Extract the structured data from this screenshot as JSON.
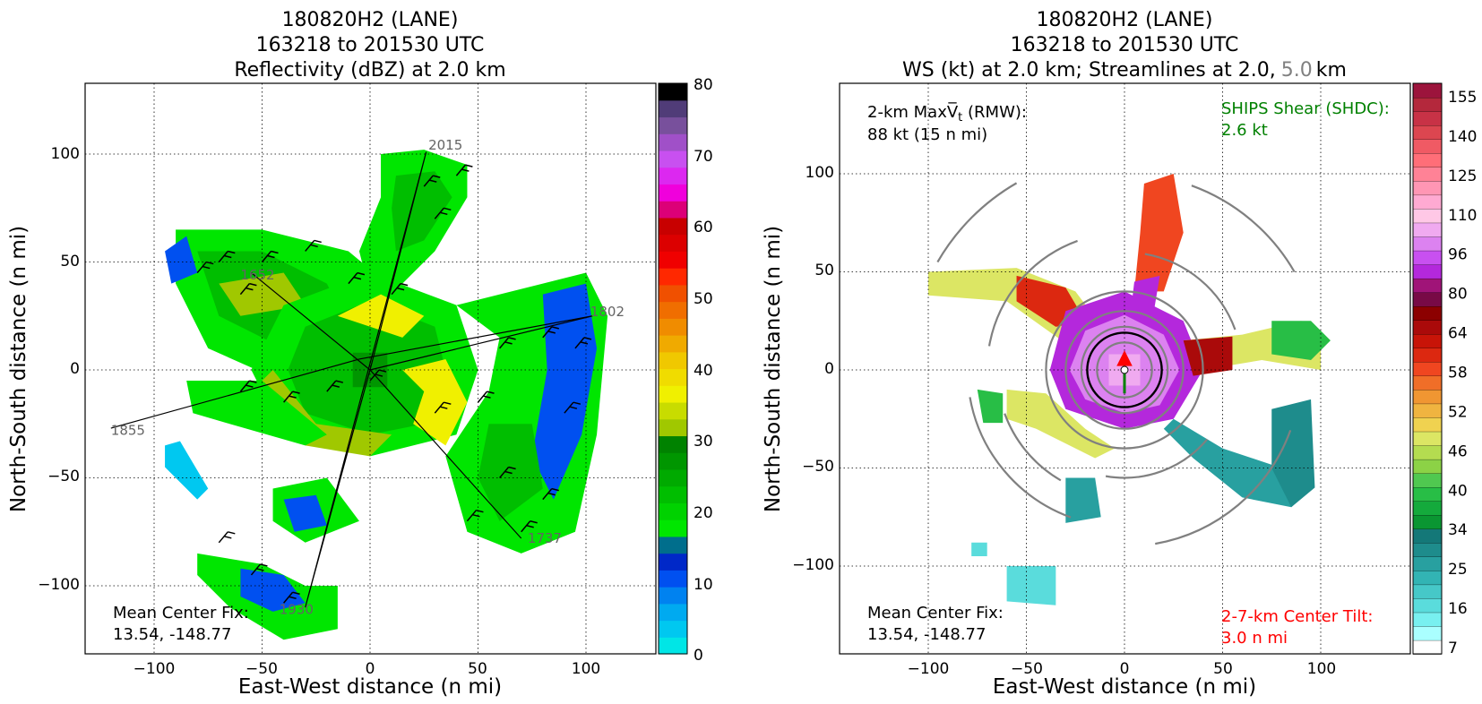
{
  "panels": {
    "left": {
      "title_line1": "180820H2 (LANE)",
      "title_line2": "163218 to 201530 UTC",
      "title_line3": "Reflectivity (dBZ) at 2.0 km",
      "xlabel": "East-West distance (n mi)",
      "ylabel": "North-South distance (n mi)",
      "xticks": [
        "−100",
        "−50",
        "0",
        "50",
        "100"
      ],
      "yticks": [
        "100",
        "50",
        "0",
        "−50",
        "−100"
      ],
      "center_fix_label": "Mean Center Fix:",
      "center_fix_value": "13.54, -148.77",
      "track_times": [
        "2015",
        "1652",
        "1802",
        "1855",
        "1737",
        "1930"
      ],
      "colorbar_ticks": [
        "80",
        "70",
        "60",
        "50",
        "40",
        "30",
        "20",
        "10",
        "0"
      ]
    },
    "right": {
      "title_line1": "180820H2 (LANE)",
      "title_line2": "163218 to 201530 UTC",
      "title_line3a": "WS (kt) at 2.0 km; Streamlines at 2.0,",
      "title_line3b": "5.0",
      "title_line3c": "km",
      "xlabel": "East-West distance (n mi)",
      "ylabel": "North-South distance (n mi)",
      "xticks": [
        "−100",
        "−50",
        "0",
        "50",
        "100"
      ],
      "yticks": [
        "100",
        "50",
        "0",
        "−50",
        "−100"
      ],
      "maxvt_label": "2-km Max",
      "maxvt_sym": "V̅",
      "maxvt_sub": "t",
      "maxvt_suffix": " (RMW):",
      "maxvt_value": "88 kt (15 n mi)",
      "shear_label": "SHIPS Shear (SHDC):",
      "shear_value": "2.6 kt",
      "center_fix_label": "Mean Center Fix:",
      "center_fix_value": "13.54, -148.77",
      "tilt_label": "2-7-km Center Tilt:",
      "tilt_value": "3.0 n mi",
      "colorbar_ticks": [
        "155",
        "140",
        "125",
        "110",
        "96",
        "80",
        "64",
        "58",
        "52",
        "46",
        "40",
        "34",
        "25",
        "16",
        "7"
      ]
    }
  },
  "colors": {
    "refl_scale": [
      "#00e6e6",
      "#00c8f0",
      "#00aaf0",
      "#0082f0",
      "#0050f0",
      "#0028c8",
      "#006e8c",
      "#00e600",
      "#00d200",
      "#00be00",
      "#00aa00",
      "#009600",
      "#008200",
      "#a0c800",
      "#c8dc00",
      "#f0f000",
      "#f0dc00",
      "#f0c800",
      "#f0aa00",
      "#f08c00",
      "#f06e00",
      "#f05000",
      "#ff2800",
      "#f00000",
      "#dc0000",
      "#c80000",
      "#dc0078",
      "#f000dc",
      "#dc28f0",
      "#c850f0",
      "#a050c8",
      "#78509c",
      "#503c78",
      "#000000"
    ],
    "ws_scale": [
      "#ffffff",
      "#aaffff",
      "#78f0f0",
      "#5adcdc",
      "#46c8c8",
      "#32b4b4",
      "#28a0a0",
      "#1e8c8c",
      "#147878",
      "#0a9632",
      "#14aa3c",
      "#28be46",
      "#50c850",
      "#8cd246",
      "#b4dc50",
      "#dce664",
      "#f0d250",
      "#f0b440",
      "#f09632",
      "#f06e28",
      "#f04620",
      "#dc2810",
      "#c81408",
      "#aa0a0a",
      "#8c0000",
      "#780a46",
      "#a01478",
      "#b428dc",
      "#c850f0",
      "#dc82f0",
      "#f0aaf0",
      "#ffc8e6",
      "#ffaad2",
      "#ff96b4",
      "#ff8296",
      "#ff6e78",
      "#f05a64",
      "#dc4650",
      "#c83246",
      "#b4283c",
      "#9c143c"
    ],
    "center_tilt_color": "#ff0000",
    "shear_color": "#008000",
    "track_label_color": "#646464",
    "streamline_color": "#808080"
  },
  "chart_data": [
    {
      "type": "heatmap",
      "title": "Reflectivity (dBZ) at 2.0 km",
      "xlabel": "East-West distance (n mi)",
      "ylabel": "North-South distance (n mi)",
      "xlim": [
        -132,
        132
      ],
      "ylim": [
        -132,
        132
      ],
      "colorbar_range": [
        0,
        80
      ],
      "colorbar_ticks": [
        0,
        10,
        20,
        30,
        40,
        50,
        60,
        70,
        80
      ],
      "center_fix": [
        13.54,
        -148.77
      ],
      "flight_track_labels": [
        "2015",
        "1652",
        "1802",
        "1855",
        "1737",
        "1930"
      ]
    },
    {
      "type": "heatmap",
      "title": "WS (kt) at 2.0 km; Streamlines at 2.0, 5.0 km",
      "xlabel": "East-West distance (n mi)",
      "ylabel": "North-South distance (n mi)",
      "xlim": [
        -145,
        145
      ],
      "ylim": [
        -145,
        145
      ],
      "colorbar_ticks": [
        7,
        16,
        25,
        34,
        40,
        46,
        52,
        58,
        64,
        80,
        96,
        110,
        125,
        140,
        155
      ],
      "max_vt_kt": 88,
      "rmw_nmi": 15,
      "ships_shear_kt": 2.6,
      "center_tilt_nmi": 3.0,
      "center_fix": [
        13.54,
        -148.77
      ]
    }
  ]
}
